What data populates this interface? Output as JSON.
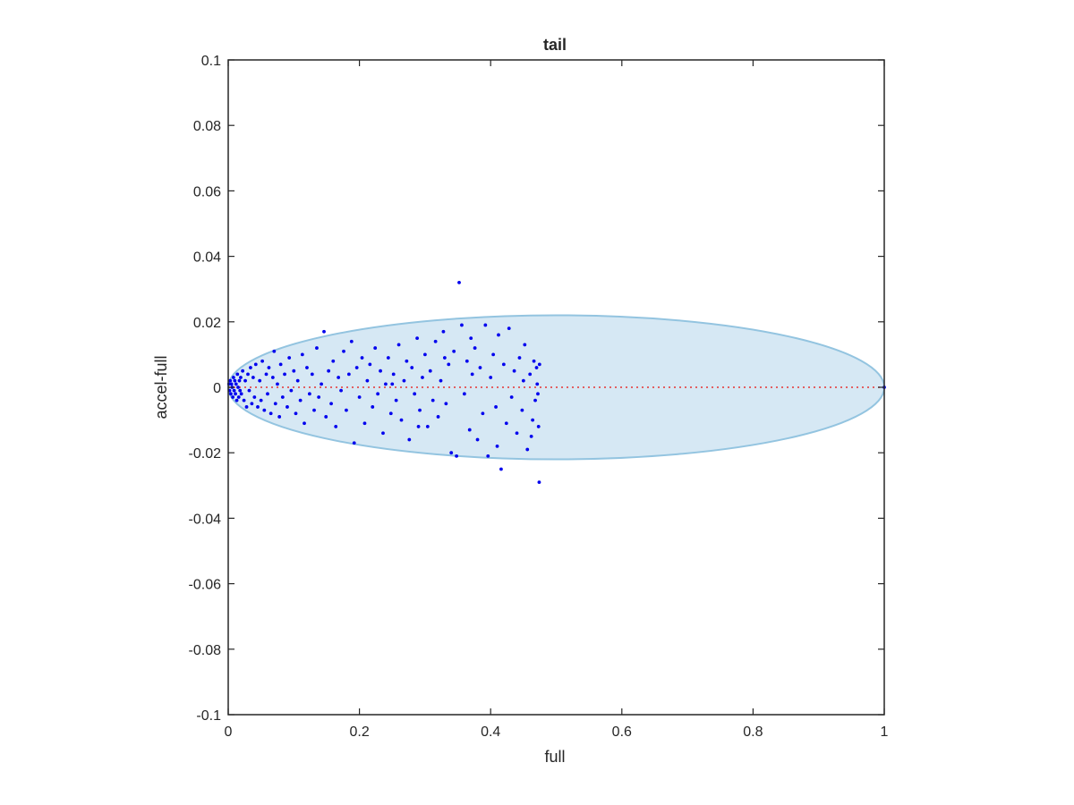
{
  "chart_data": {
    "type": "scatter",
    "title": "tail",
    "xlabel": "full",
    "ylabel": "accel-full",
    "xlim": [
      0,
      1
    ],
    "ylim": [
      -0.1,
      0.1
    ],
    "xticks": [
      0,
      0.2,
      0.4,
      0.6,
      0.8,
      1
    ],
    "xtick_labels": [
      "0",
      "0.2",
      "0.4",
      "0.6",
      "0.8",
      "1"
    ],
    "yticks": [
      -0.1,
      -0.08,
      -0.06,
      -0.04,
      -0.02,
      0,
      0.02,
      0.04,
      0.06,
      0.08,
      0.1
    ],
    "ytick_labels": [
      "-0.1",
      "-0.08",
      "-0.06",
      "-0.04",
      "-0.02",
      "0",
      "0.02",
      "0.04",
      "0.06",
      "0.08",
      "0.1"
    ],
    "grid": false,
    "colors": {
      "points": "#0000ee",
      "ellipse_fill": "#d6e8f4",
      "ellipse_stroke": "#93c4e0",
      "reference_line": "#e63232",
      "axes": "#262626"
    },
    "ellipse": {
      "center": [
        0.5,
        0
      ],
      "x_semi_axis": 0.5,
      "y_semi_axis": 0.022
    },
    "reference_line": {
      "y": 0,
      "x": [
        0,
        1
      ],
      "style": "dotted"
    },
    "points": [
      [
        0.001,
        0.001
      ],
      [
        0.002,
        -0.001
      ],
      [
        0.003,
        0.002
      ],
      [
        0.004,
        -0.002
      ],
      [
        0.005,
        0.001
      ],
      [
        0.006,
        0.0
      ],
      [
        0.007,
        -0.003
      ],
      [
        0.008,
        0.003
      ],
      [
        0.009,
        -0.001
      ],
      [
        0.01,
        0.002
      ],
      [
        0.011,
        -0.002
      ],
      [
        0.012,
        0.001
      ],
      [
        0.013,
        -0.004
      ],
      [
        0.014,
        0.004
      ],
      [
        0.015,
        0.0
      ],
      [
        0.016,
        -0.003
      ],
      [
        0.017,
        0.002
      ],
      [
        0.018,
        -0.001
      ],
      [
        0.019,
        0.003
      ],
      [
        0.02,
        -0.002
      ],
      [
        0.022,
        0.005
      ],
      [
        0.024,
        -0.004
      ],
      [
        0.026,
        0.002
      ],
      [
        0.028,
        -0.006
      ],
      [
        0.03,
        0.004
      ],
      [
        0.032,
        -0.001
      ],
      [
        0.034,
        0.006
      ],
      [
        0.036,
        -0.005
      ],
      [
        0.038,
        0.003
      ],
      [
        0.04,
        -0.003
      ],
      [
        0.042,
        0.007
      ],
      [
        0.045,
        -0.006
      ],
      [
        0.048,
        0.002
      ],
      [
        0.05,
        -0.004
      ],
      [
        0.052,
        0.008
      ],
      [
        0.055,
        -0.007
      ],
      [
        0.058,
        0.004
      ],
      [
        0.06,
        -0.002
      ],
      [
        0.062,
        0.006
      ],
      [
        0.065,
        -0.008
      ],
      [
        0.068,
        0.003
      ],
      [
        0.07,
        0.011
      ],
      [
        0.072,
        -0.005
      ],
      [
        0.075,
        0.001
      ],
      [
        0.078,
        -0.009
      ],
      [
        0.08,
        0.007
      ],
      [
        0.083,
        -0.003
      ],
      [
        0.086,
        0.004
      ],
      [
        0.09,
        -0.006
      ],
      [
        0.093,
        0.009
      ],
      [
        0.096,
        -0.001
      ],
      [
        0.1,
        0.005
      ],
      [
        0.103,
        -0.008
      ],
      [
        0.106,
        0.002
      ],
      [
        0.11,
        -0.004
      ],
      [
        0.113,
        0.01
      ],
      [
        0.116,
        -0.011
      ],
      [
        0.12,
        0.006
      ],
      [
        0.124,
        -0.002
      ],
      [
        0.128,
        0.004
      ],
      [
        0.131,
        -0.007
      ],
      [
        0.135,
        0.012
      ],
      [
        0.138,
        -0.003
      ],
      [
        0.142,
        0.001
      ],
      [
        0.146,
        0.017
      ],
      [
        0.149,
        -0.009
      ],
      [
        0.153,
        0.005
      ],
      [
        0.157,
        -0.005
      ],
      [
        0.16,
        0.008
      ],
      [
        0.164,
        -0.012
      ],
      [
        0.168,
        0.003
      ],
      [
        0.172,
        -0.001
      ],
      [
        0.176,
        0.011
      ],
      [
        0.18,
        -0.007
      ],
      [
        0.184,
        0.004
      ],
      [
        0.188,
        0.014
      ],
      [
        0.192,
        -0.017
      ],
      [
        0.196,
        0.006
      ],
      [
        0.2,
        -0.003
      ],
      [
        0.204,
        0.009
      ],
      [
        0.208,
        -0.011
      ],
      [
        0.212,
        0.002
      ],
      [
        0.216,
        0.007
      ],
      [
        0.22,
        -0.006
      ],
      [
        0.224,
        0.012
      ],
      [
        0.228,
        -0.002
      ],
      [
        0.232,
        0.005
      ],
      [
        0.236,
        -0.014
      ],
      [
        0.24,
        0.001
      ],
      [
        0.244,
        0.009
      ],
      [
        0.248,
        -0.008
      ],
      [
        0.252,
        0.004
      ],
      [
        0.256,
        -0.004
      ],
      [
        0.26,
        0.013
      ],
      [
        0.264,
        -0.01
      ],
      [
        0.268,
        0.002
      ],
      [
        0.272,
        0.008
      ],
      [
        0.276,
        -0.016
      ],
      [
        0.28,
        0.006
      ],
      [
        0.284,
        -0.002
      ],
      [
        0.288,
        0.015
      ],
      [
        0.292,
        -0.007
      ],
      [
        0.296,
        0.003
      ],
      [
        0.3,
        0.01
      ],
      [
        0.304,
        -0.012
      ],
      [
        0.308,
        0.005
      ],
      [
        0.312,
        -0.004
      ],
      [
        0.316,
        0.014
      ],
      [
        0.32,
        -0.009
      ],
      [
        0.324,
        0.002
      ],
      [
        0.328,
        0.017
      ],
      [
        0.332,
        -0.005
      ],
      [
        0.336,
        0.007
      ],
      [
        0.34,
        -0.02
      ],
      [
        0.344,
        0.011
      ],
      [
        0.348,
        -0.021
      ],
      [
        0.352,
        0.032
      ],
      [
        0.356,
        0.019
      ],
      [
        0.36,
        -0.002
      ],
      [
        0.364,
        0.008
      ],
      [
        0.368,
        -0.013
      ],
      [
        0.372,
        0.004
      ],
      [
        0.376,
        0.012
      ],
      [
        0.38,
        -0.016
      ],
      [
        0.384,
        0.006
      ],
      [
        0.388,
        -0.008
      ],
      [
        0.392,
        0.019
      ],
      [
        0.396,
        -0.021
      ],
      [
        0.4,
        0.003
      ],
      [
        0.404,
        0.01
      ],
      [
        0.408,
        -0.006
      ],
      [
        0.412,
        0.016
      ],
      [
        0.416,
        -0.025
      ],
      [
        0.42,
        0.007
      ],
      [
        0.424,
        -0.011
      ],
      [
        0.428,
        0.018
      ],
      [
        0.432,
        -0.003
      ],
      [
        0.436,
        0.005
      ],
      [
        0.44,
        -0.014
      ],
      [
        0.444,
        0.009
      ],
      [
        0.448,
        -0.007
      ],
      [
        0.452,
        0.013
      ],
      [
        0.456,
        -0.019
      ],
      [
        0.46,
        0.004
      ],
      [
        0.464,
        -0.01
      ],
      [
        0.466,
        0.008
      ],
      [
        0.468,
        -0.004
      ],
      [
        0.47,
        0.006
      ],
      [
        0.472,
        -0.002
      ],
      [
        0.474,
        -0.029
      ],
      [
        0.4745,
        0.007
      ],
      [
        0.473,
        -0.012
      ],
      [
        0.471,
        0.001
      ],
      [
        0.462,
        -0.015
      ],
      [
        0.45,
        0.002
      ],
      [
        0.41,
        -0.018
      ],
      [
        0.37,
        0.015
      ],
      [
        0.33,
        0.009
      ],
      [
        0.29,
        -0.012
      ],
      [
        0.25,
        0.001
      ],
      [
        1.0,
        0.0
      ]
    ]
  }
}
